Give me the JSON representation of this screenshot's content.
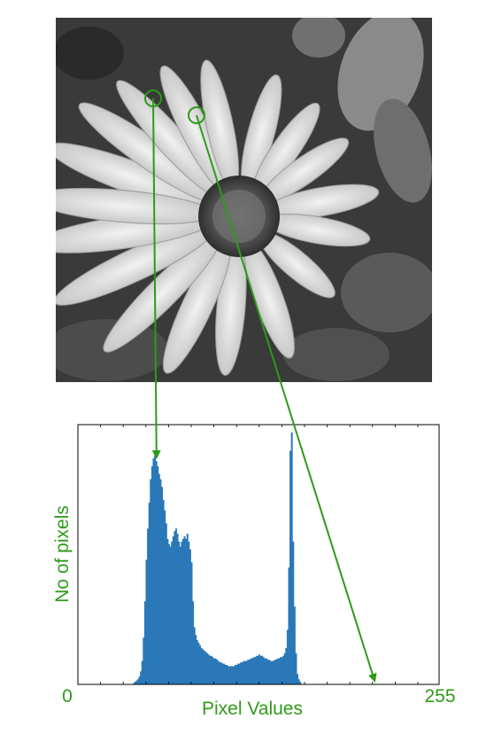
{
  "colors": {
    "accent": "#2e9a1a",
    "bars": "#2a78b8",
    "frame": "#000000",
    "background": "#ffffff"
  },
  "photo": {
    "subject": "grayscale daisy flower"
  },
  "chart_data": {
    "type": "bar",
    "title": "",
    "xlabel": "Pixel Values",
    "ylabel": "No of pixels",
    "x_min_label": "0",
    "x_max_label": "255",
    "xlim": [
      0,
      255
    ],
    "ylim": [
      0,
      100
    ],
    "grid": false,
    "legend": "none",
    "series": [
      {
        "values": [
          0,
          0,
          0,
          0,
          0,
          0,
          0,
          0,
          0,
          0,
          0,
          0,
          0,
          0,
          0,
          0,
          0,
          0,
          0,
          0,
          0,
          0,
          0,
          0,
          0,
          0,
          0,
          0,
          0,
          0,
          0,
          0,
          0,
          0,
          0,
          0,
          0,
          0,
          0,
          0.5,
          1,
          1.5,
          2,
          3,
          5,
          9,
          18,
          32,
          48,
          60,
          70,
          79,
          84,
          87,
          88,
          86,
          84,
          81,
          79,
          76,
          71,
          67,
          62,
          56,
          54,
          53,
          55,
          57,
          59,
          60,
          58,
          55,
          53,
          55,
          56,
          57,
          56,
          58,
          55,
          52,
          47,
          32,
          22,
          19,
          17,
          16,
          15,
          14,
          13.5,
          13,
          12.5,
          12,
          11.5,
          11,
          11,
          10.5,
          10,
          10,
          9.5,
          9,
          8.5,
          8.5,
          8,
          8,
          7.5,
          7.5,
          7,
          7,
          7,
          7,
          7,
          7.5,
          7.5,
          8,
          8,
          8.5,
          8.5,
          9,
          9,
          9,
          9.5,
          9.5,
          10,
          10,
          10.5,
          10.5,
          11,
          11,
          11.5,
          11,
          11,
          10.5,
          10,
          10,
          9.5,
          9.5,
          9,
          9,
          9,
          9.5,
          9.5,
          10,
          10,
          10.5,
          10.5,
          11,
          12,
          14,
          21,
          45,
          90,
          97,
          55,
          30,
          12,
          4,
          2,
          1,
          0,
          0,
          0,
          0,
          0,
          0,
          0,
          0,
          0,
          0,
          0,
          0,
          0,
          0,
          0,
          0,
          0,
          0,
          0,
          0,
          0,
          0,
          0,
          0,
          0,
          0,
          0,
          0,
          0,
          0,
          0,
          0,
          0,
          0,
          0,
          0,
          0,
          0,
          0,
          0,
          0,
          0,
          0,
          0,
          0,
          0,
          0,
          0,
          0,
          0,
          0,
          0,
          0,
          0,
          0,
          0,
          0,
          0,
          0,
          0,
          0,
          0,
          0,
          0,
          0,
          0,
          0,
          0,
          0,
          0,
          0,
          0,
          0,
          0,
          0,
          0,
          0,
          0,
          0,
          0,
          0,
          0,
          0,
          0,
          0,
          0,
          0,
          0,
          0,
          0,
          0,
          0,
          0,
          0,
          0,
          0,
          0,
          0,
          0,
          0,
          0,
          0,
          0,
          0,
          0,
          0,
          0
        ]
      }
    ],
    "annotations": [
      {
        "type": "arrow",
        "from": "left-petal-sample-circle",
        "to_bin": 55
      },
      {
        "type": "arrow",
        "from": "right-petal-sample-circle",
        "to_bin": 209
      }
    ]
  }
}
